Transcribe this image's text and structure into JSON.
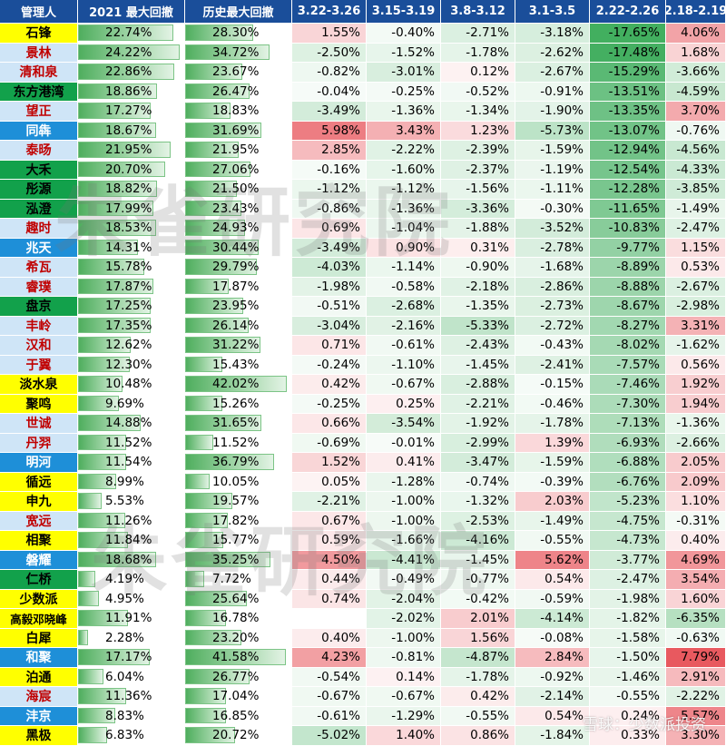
{
  "headers": [
    "管理人",
    "2021 最大回撤",
    "历史最大回撤",
    "3.22-3.26",
    "3.15-3.19",
    "3.8-3.12",
    "3.1-3.5",
    "2.22-2.26",
    "2.18-2.19"
  ],
  "watermark_top": "朱雀研究院",
  "watermark_bottom": "朱雀研究院",
  "footer": "雪球：少数派投资",
  "palette": {
    "header": "#1a4e9a",
    "negative": "#32a852",
    "positive": "#e6484f"
  },
  "rows": [
    {
      "name": "石锋",
      "style": "yellow",
      "dd2021": "22.74%",
      "ddHist": "28.30%",
      "w": [
        "1.55%",
        "-0.40%",
        "-2.71%",
        "-3.18%",
        "-17.65%",
        "4.06%"
      ]
    },
    {
      "name": "景林",
      "style": "light",
      "dd2021": "24.22%",
      "ddHist": "34.72%",
      "w": [
        "-2.50%",
        "-1.52%",
        "-1.78%",
        "-2.62%",
        "-17.48%",
        "1.68%"
      ]
    },
    {
      "name": "清和泉",
      "style": "light",
      "dd2021": "22.86%",
      "ddHist": "23.67%",
      "w": [
        "-0.82%",
        "-3.01%",
        "0.12%",
        "-2.67%",
        "-15.29%",
        "-3.66%"
      ]
    },
    {
      "name": "东方港湾",
      "style": "green",
      "dd2021": "18.86%",
      "ddHist": "26.47%",
      "w": [
        "-0.04%",
        "-0.25%",
        "-0.52%",
        "-0.91%",
        "-13.51%",
        "-4.59%"
      ]
    },
    {
      "name": "望正",
      "style": "light",
      "dd2021": "17.27%",
      "ddHist": "18.83%",
      "w": [
        "-3.49%",
        "-1.36%",
        "-1.34%",
        "-1.90%",
        "-13.35%",
        "3.70%"
      ]
    },
    {
      "name": "同犇",
      "style": "blue",
      "dd2021": "18.67%",
      "ddHist": "31.69%",
      "w": [
        "5.98%",
        "3.43%",
        "1.23%",
        "-5.73%",
        "-13.07%",
        "-0.76%"
      ]
    },
    {
      "name": "泰旸",
      "style": "light",
      "dd2021": "21.95%",
      "ddHist": "21.95%",
      "w": [
        "2.85%",
        "-2.22%",
        "-2.39%",
        "-1.59%",
        "-12.94%",
        "-4.56%"
      ]
    },
    {
      "name": "大禾",
      "style": "green",
      "dd2021": "20.70%",
      "ddHist": "27.06%",
      "w": [
        "-0.16%",
        "-1.60%",
        "-2.37%",
        "-1.19%",
        "-12.54%",
        "-4.33%"
      ]
    },
    {
      "name": "彤源",
      "style": "green",
      "dd2021": "18.82%",
      "ddHist": "21.50%",
      "w": [
        "-1.12%",
        "-1.12%",
        "-1.56%",
        "-1.11%",
        "-12.28%",
        "-3.85%"
      ]
    },
    {
      "name": "泓澄",
      "style": "green",
      "dd2021": "17.99%",
      "ddHist": "23.43%",
      "w": [
        "-0.86%",
        "-1.36%",
        "-3.36%",
        "-0.30%",
        "-11.65%",
        "-1.49%"
      ]
    },
    {
      "name": "趣时",
      "style": "light",
      "dd2021": "18.53%",
      "ddHist": "24.93%",
      "w": [
        "0.69%",
        "-1.04%",
        "-1.88%",
        "-3.52%",
        "-10.83%",
        "-2.47%"
      ]
    },
    {
      "name": "兆天",
      "style": "blue",
      "dd2021": "14.31%",
      "ddHist": "30.44%",
      "w": [
        "-3.49%",
        "0.90%",
        "0.31%",
        "-2.78%",
        "-9.77%",
        "1.15%"
      ]
    },
    {
      "name": "希瓦",
      "style": "light",
      "dd2021": "15.78%",
      "ddHist": "29.79%",
      "w": [
        "-4.03%",
        "-1.14%",
        "-0.90%",
        "-1.68%",
        "-8.89%",
        "0.53%"
      ]
    },
    {
      "name": "睿璞",
      "style": "light",
      "dd2021": "17.87%",
      "ddHist": "17.87%",
      "w": [
        "-1.98%",
        "-0.58%",
        "-2.18%",
        "-2.86%",
        "-8.88%",
        "-2.67%"
      ]
    },
    {
      "name": "盘京",
      "style": "green",
      "dd2021": "17.25%",
      "ddHist": "23.95%",
      "w": [
        "-0.51%",
        "-2.68%",
        "-1.35%",
        "-2.73%",
        "-8.67%",
        "-2.98%"
      ]
    },
    {
      "name": "丰岭",
      "style": "light",
      "dd2021": "17.35%",
      "ddHist": "26.14%",
      "w": [
        "-3.04%",
        "-2.16%",
        "-5.33%",
        "-2.72%",
        "-8.27%",
        "3.31%"
      ]
    },
    {
      "name": "汉和",
      "style": "light",
      "dd2021": "12.62%",
      "ddHist": "31.22%",
      "w": [
        "0.71%",
        "-0.61%",
        "-2.43%",
        "-0.43%",
        "-8.02%",
        "-1.62%"
      ]
    },
    {
      "name": "于翼",
      "style": "light",
      "dd2021": "12.30%",
      "ddHist": "15.43%",
      "w": [
        "-0.24%",
        "-1.10%",
        "-1.45%",
        "-2.41%",
        "-7.57%",
        "0.56%"
      ]
    },
    {
      "name": "淡水泉",
      "style": "yellow",
      "dd2021": "10.48%",
      "ddHist": "42.02%",
      "w": [
        "0.42%",
        "-0.67%",
        "-2.88%",
        "-0.15%",
        "-7.46%",
        "1.92%"
      ]
    },
    {
      "name": "聚鸣",
      "style": "yellow",
      "dd2021": "9.69%",
      "ddHist": "15.26%",
      "w": [
        "-0.25%",
        "0.25%",
        "-2.21%",
        "-0.46%",
        "-7.30%",
        "1.94%"
      ]
    },
    {
      "name": "世诚",
      "style": "light",
      "dd2021": "14.88%",
      "ddHist": "31.65%",
      "w": [
        "0.66%",
        "-3.54%",
        "-1.92%",
        "-1.78%",
        "-7.13%",
        "-1.36%"
      ]
    },
    {
      "name": "丹羿",
      "style": "light",
      "dd2021": "11.52%",
      "ddHist": "11.52%",
      "w": [
        "-0.69%",
        "-0.01%",
        "-2.99%",
        "1.39%",
        "-6.93%",
        "-2.66%"
      ]
    },
    {
      "name": "明河",
      "style": "blue",
      "dd2021": "11.54%",
      "ddHist": "36.79%",
      "w": [
        "1.52%",
        "0.41%",
        "-3.47%",
        "-1.59%",
        "-6.88%",
        "2.05%"
      ]
    },
    {
      "name": "循远",
      "style": "yellow",
      "dd2021": "8.99%",
      "ddHist": "10.05%",
      "w": [
        "0.05%",
        "-1.28%",
        "-0.74%",
        "-0.39%",
        "-6.76%",
        "2.09%"
      ]
    },
    {
      "name": "申九",
      "style": "yellow",
      "dd2021": "5.53%",
      "ddHist": "19.57%",
      "w": [
        "-2.21%",
        "-1.00%",
        "-1.32%",
        "2.03%",
        "-5.23%",
        "1.10%"
      ]
    },
    {
      "name": "宽远",
      "style": "light",
      "dd2021": "11.26%",
      "ddHist": "17.82%",
      "w": [
        "0.67%",
        "-1.00%",
        "-2.53%",
        "-1.49%",
        "-4.75%",
        "-0.31%"
      ]
    },
    {
      "name": "相聚",
      "style": "yellow",
      "dd2021": "11.84%",
      "ddHist": "15.77%",
      "w": [
        "0.59%",
        "-1.66%",
        "-4.16%",
        "-0.55%",
        "-4.73%",
        "0.40%"
      ]
    },
    {
      "name": "磐耀",
      "style": "blue",
      "dd2021": "18.68%",
      "ddHist": "35.25%",
      "w": [
        "4.50%",
        "-4.41%",
        "-1.45%",
        "5.62%",
        "-3.77%",
        "4.69%"
      ]
    },
    {
      "name": "仁桥",
      "style": "green",
      "dd2021": "4.19%",
      "ddHist": "7.72%",
      "w": [
        "0.44%",
        "-0.49%",
        "-0.77%",
        "0.54%",
        "-2.47%",
        "3.54%"
      ]
    },
    {
      "name": "少数派",
      "style": "yellow",
      "dd2021": "4.95%",
      "ddHist": "25.64%",
      "w": [
        "0.74%",
        "-2.04%",
        "-0.42%",
        "-0.59%",
        "-1.98%",
        "1.60%"
      ]
    },
    {
      "name": "高毅邓晓峰",
      "style": "yellow",
      "dd2021": "11.91%",
      "ddHist": "16.78%",
      "w": [
        "",
        "-2.02%",
        "2.01%",
        "-4.14%",
        "-1.82%",
        "-6.35%"
      ]
    },
    {
      "name": "白犀",
      "style": "yellow",
      "dd2021": "2.28%",
      "ddHist": "23.20%",
      "w": [
        "0.40%",
        "-1.00%",
        "1.56%",
        "-0.08%",
        "-1.58%",
        "-0.63%"
      ]
    },
    {
      "name": "和聚",
      "style": "blue",
      "dd2021": "17.17%",
      "ddHist": "41.58%",
      "w": [
        "4.23%",
        "-0.81%",
        "-4.87%",
        "2.84%",
        "-1.50%",
        "7.79%"
      ]
    },
    {
      "name": "泊通",
      "style": "yellow",
      "dd2021": "6.04%",
      "ddHist": "26.77%",
      "w": [
        "-0.54%",
        "0.14%",
        "-1.78%",
        "-0.92%",
        "-1.46%",
        "2.91%"
      ]
    },
    {
      "name": "海宸",
      "style": "light",
      "dd2021": "11.36%",
      "ddHist": "17.04%",
      "w": [
        "-0.67%",
        "-0.67%",
        "0.42%",
        "-2.14%",
        "-0.55%",
        "-2.22%"
      ]
    },
    {
      "name": "沣京",
      "style": "blue",
      "dd2021": "8.83%",
      "ddHist": "16.85%",
      "w": [
        "-0.61%",
        "-1.29%",
        "-0.55%",
        "0.54%",
        "0.24%",
        "5.57%"
      ]
    },
    {
      "name": "黑极",
      "style": "yellow",
      "dd2021": "6.83%",
      "ddHist": "20.72%",
      "w": [
        "-5.02%",
        "1.40%",
        "0.86%",
        "-1.84%",
        "0.33%",
        "3.30%"
      ]
    }
  ]
}
